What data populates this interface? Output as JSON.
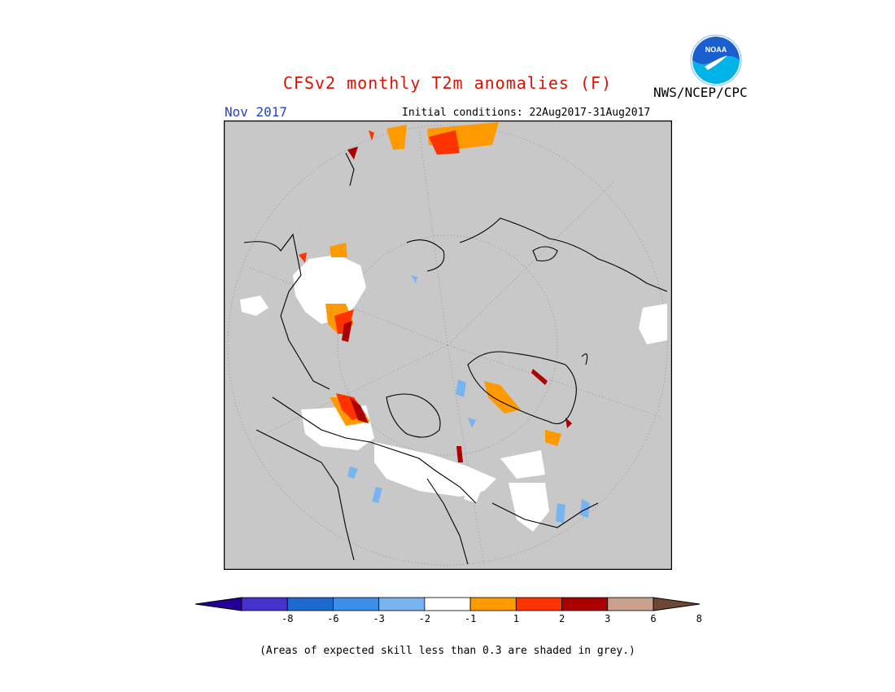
{
  "header": {
    "title": "CFSv2 monthly T2m anomalies (F)",
    "period": "Nov 2017",
    "initial_conditions": "Initial conditions: 22Aug2017-31Aug2017",
    "agency": "NWS/NCEP/CPC",
    "logo_text": "NOAA"
  },
  "colors": {
    "title": "#dd1100",
    "land_fill": "#c8c8c8",
    "border": "#000000"
  },
  "legend": {
    "ticks": [
      "-8",
      "-6",
      "-3",
      "-2",
      "-1",
      "1",
      "2",
      "3",
      "6",
      "8"
    ],
    "bins": [
      "#230096",
      "#4433cc",
      "#1c6ad0",
      "#3d8ee8",
      "#78b4f0",
      "#ffffff",
      "#ff9900",
      "#ff3300",
      "#aa0000",
      "#c8a08c",
      "#6e4636"
    ]
  },
  "footnote": "(Areas of expected skill less than 0.3 are shaded in grey.)"
}
